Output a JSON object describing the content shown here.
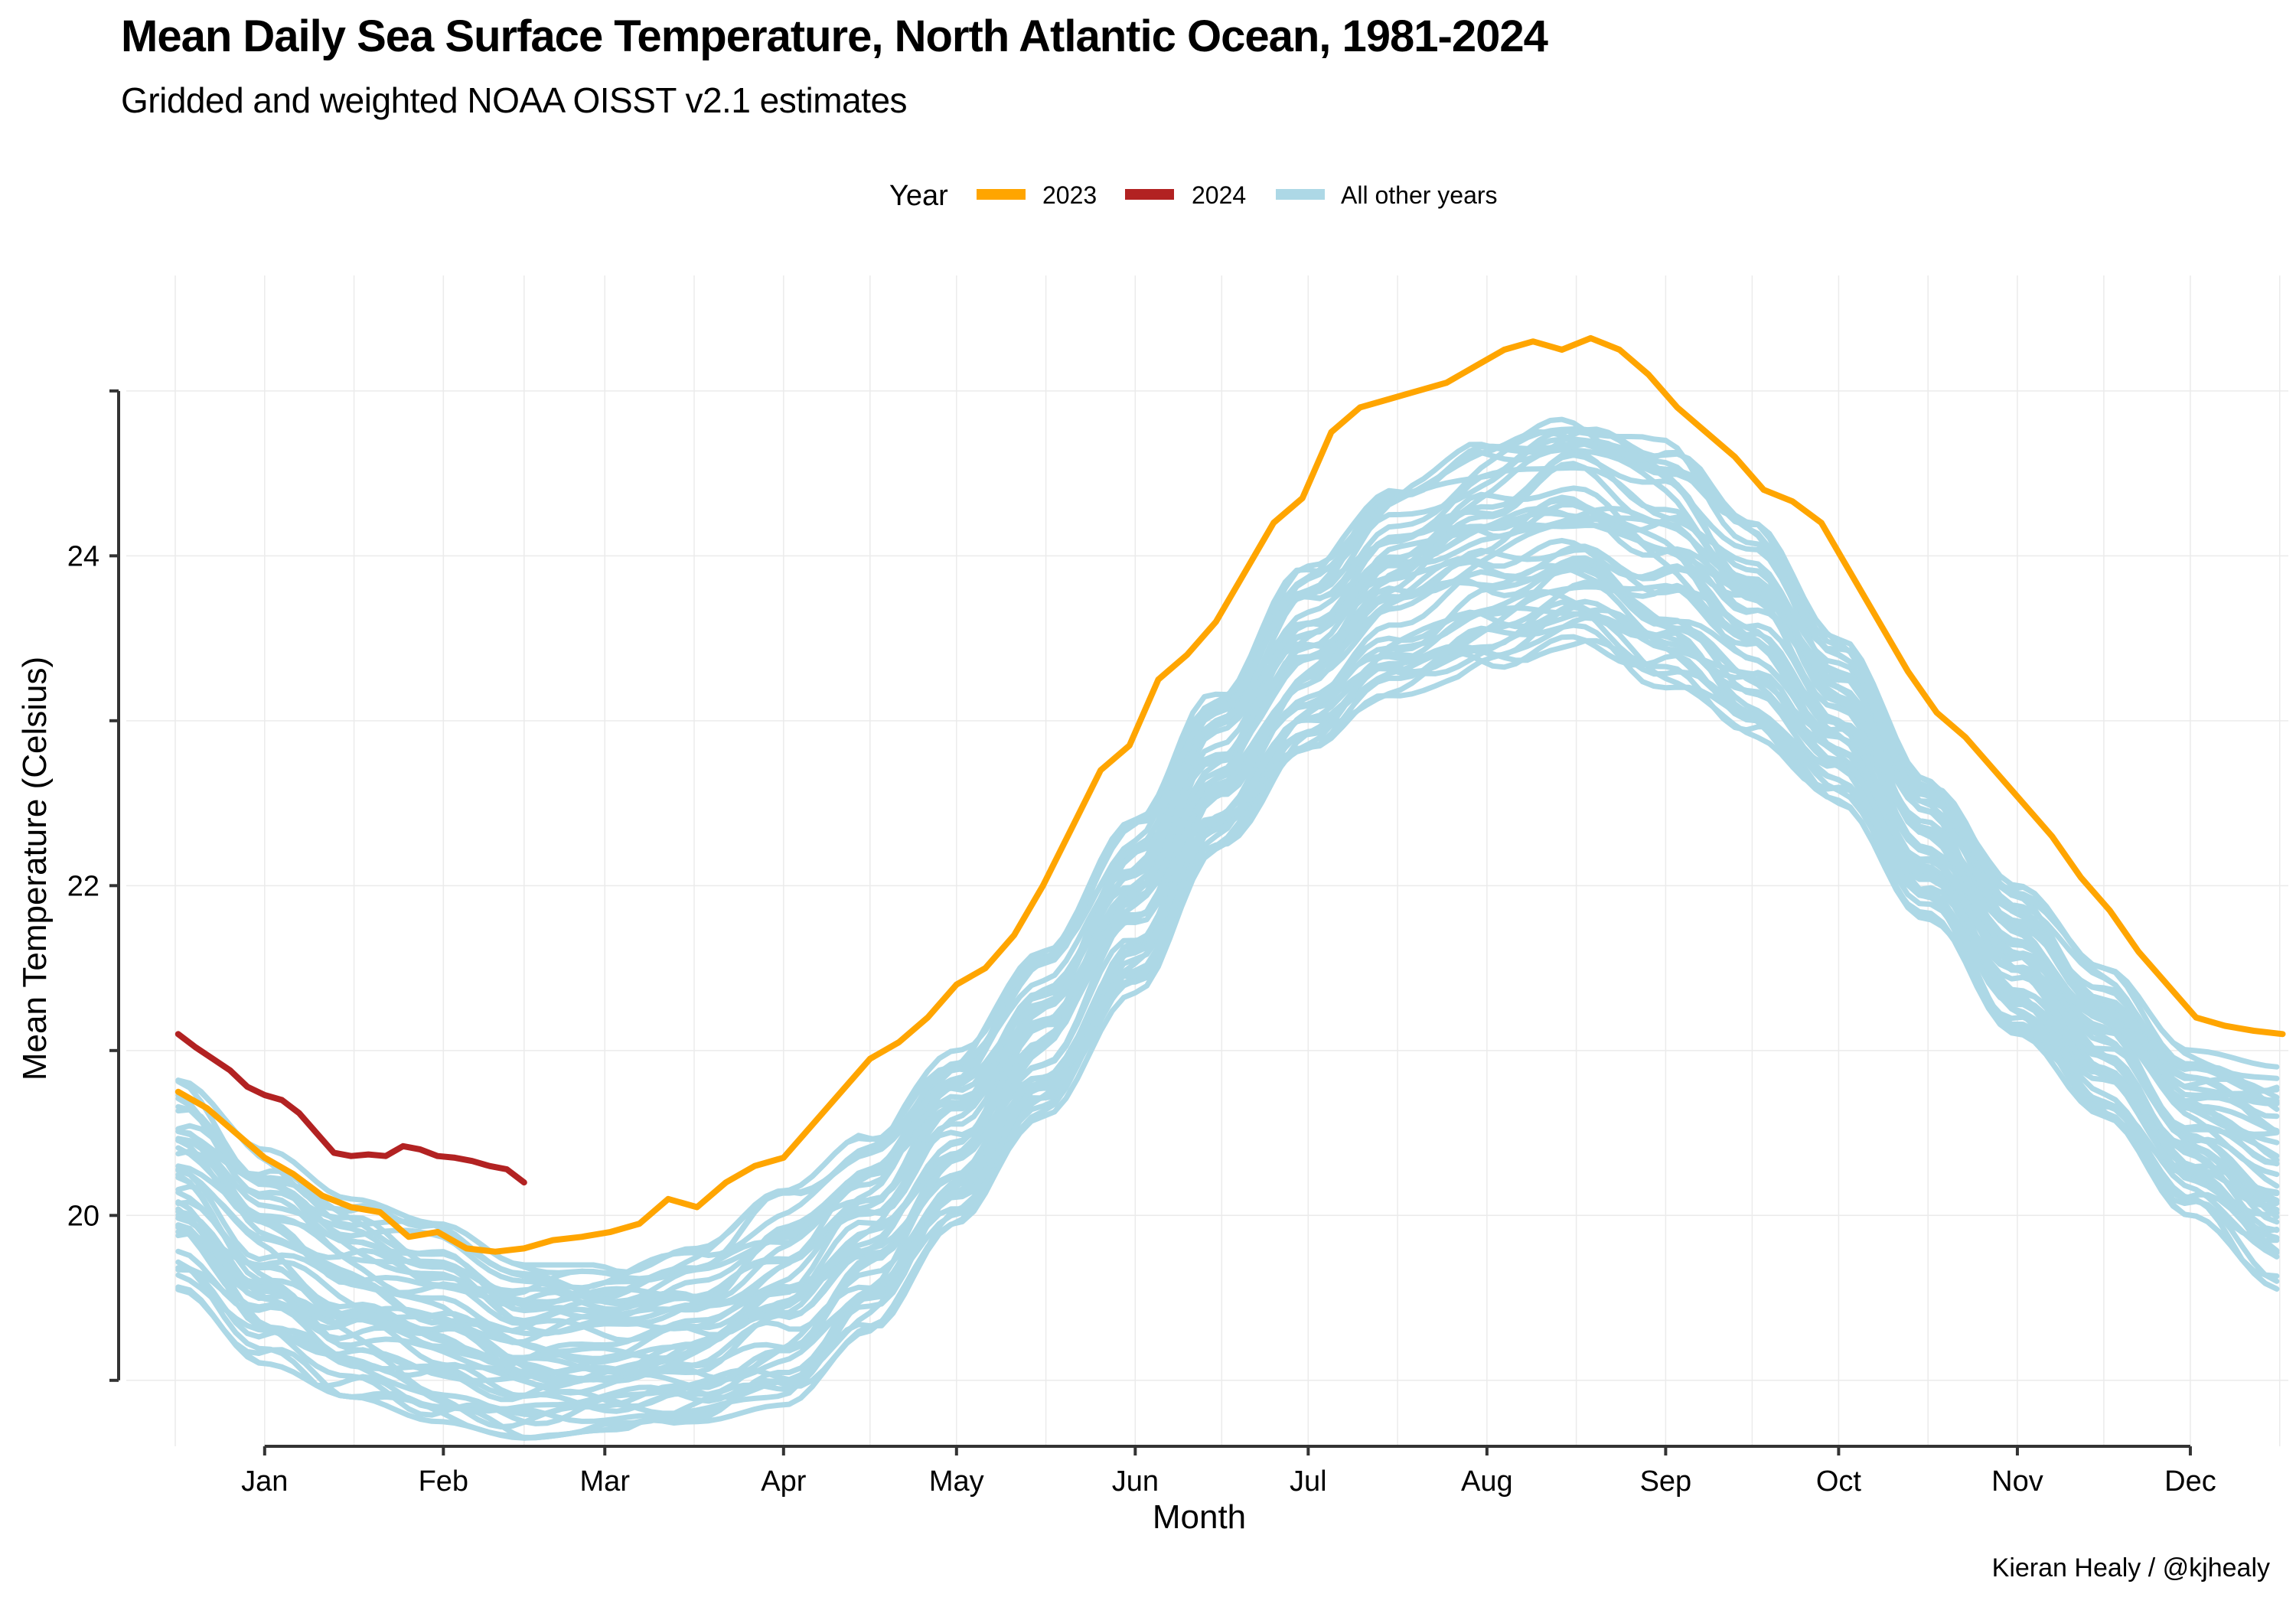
{
  "title": "Mean Daily Sea Surface Temperature, North Atlantic Ocean, 1981-2024",
  "subtitle": "Gridded and weighted NOAA OISST v2.1 estimates",
  "caption": "Kieran Healy / @kjhealy",
  "colors": {
    "y2023": "#FFA500",
    "y2024": "#B22222",
    "other": "#ADD8E6",
    "grid": "#EBEBEB",
    "axis": "#333333"
  },
  "chart_data": {
    "type": "line",
    "title": "Mean Daily Sea Surface Temperature, North Atlantic Ocean, 1981-2024",
    "subtitle": "Gridded and weighted NOAA OISST v2.1 estimates",
    "xlabel": "Month",
    "ylabel": "Mean Temperature (Celsius)",
    "x_unit": "day of year",
    "xlim": [
      -9,
      366
    ],
    "ylim": [
      18.6,
      25.7
    ],
    "x_ticks": [
      {
        "label": "Jan",
        "x": 15
      },
      {
        "label": "Feb",
        "x": 46
      },
      {
        "label": "Mar",
        "x": 74
      },
      {
        "label": "Apr",
        "x": 105
      },
      {
        "label": "May",
        "x": 135
      },
      {
        "label": "Jun",
        "x": 166
      },
      {
        "label": "Jul",
        "x": 196
      },
      {
        "label": "Aug",
        "x": 227
      },
      {
        "label": "Sep",
        "x": 258
      },
      {
        "label": "Oct",
        "x": 288
      },
      {
        "label": "Nov",
        "x": 319
      },
      {
        "label": "Dec",
        "x": 349
      }
    ],
    "y_ticks": [
      20,
      22,
      24
    ],
    "grid": true,
    "legend": {
      "title": "Year",
      "position": "top",
      "entries": [
        "2023",
        "2024",
        "All other years"
      ]
    },
    "series": [
      {
        "name": "2023",
        "color": "#FFA500",
        "x": [
          0,
          5,
          10,
          15,
          20,
          25,
          30,
          35,
          40,
          45,
          50,
          55,
          60,
          65,
          70,
          75,
          80,
          85,
          90,
          95,
          100,
          105,
          110,
          115,
          120,
          125,
          130,
          135,
          140,
          145,
          150,
          155,
          160,
          165,
          170,
          175,
          180,
          185,
          190,
          195,
          200,
          205,
          210,
          215,
          220,
          225,
          230,
          235,
          240,
          245,
          250,
          255,
          260,
          265,
          270,
          275,
          280,
          285,
          290,
          295,
          300,
          305,
          310,
          315,
          320,
          325,
          330,
          335,
          340,
          345,
          350,
          355,
          360,
          365
        ],
        "y": [
          20.75,
          20.65,
          20.5,
          20.35,
          20.25,
          20.12,
          20.05,
          20.02,
          19.87,
          19.9,
          19.8,
          19.78,
          19.8,
          19.85,
          19.87,
          19.9,
          19.95,
          20.1,
          20.05,
          20.2,
          20.3,
          20.35,
          20.55,
          20.75,
          20.95,
          21.05,
          21.2,
          21.4,
          21.5,
          21.7,
          22.0,
          22.35,
          22.7,
          22.85,
          23.25,
          23.4,
          23.6,
          23.9,
          24.2,
          24.35,
          24.75,
          24.9,
          24.95,
          25.0,
          25.05,
          25.15,
          25.25,
          25.3,
          25.25,
          25.32,
          25.25,
          25.1,
          24.9,
          24.75,
          24.6,
          24.4,
          24.33,
          24.2,
          23.9,
          23.6,
          23.3,
          23.05,
          22.9,
          22.7,
          22.5,
          22.3,
          22.05,
          21.85,
          21.6,
          21.4,
          21.2,
          21.15,
          21.12,
          21.1
        ]
      },
      {
        "name": "2024",
        "color": "#B22222",
        "x": [
          0,
          3,
          6,
          9,
          12,
          15,
          18,
          21,
          24,
          27,
          30,
          33,
          36,
          39,
          42,
          45,
          48,
          51,
          54,
          57,
          60
        ],
        "y": [
          21.1,
          21.02,
          20.95,
          20.88,
          20.78,
          20.73,
          20.7,
          20.62,
          20.5,
          20.38,
          20.36,
          20.37,
          20.36,
          20.42,
          20.4,
          20.36,
          20.35,
          20.33,
          20.3,
          20.28,
          20.2
        ]
      },
      {
        "name": "All other years",
        "color": "#ADD8E6",
        "x_range": [
          0,
          365
        ],
        "band_low": [
          {
            "x": 0,
            "y": 19.55
          },
          {
            "x": 15,
            "y": 19.1
          },
          {
            "x": 30,
            "y": 18.9
          },
          {
            "x": 45,
            "y": 18.75
          },
          {
            "x": 60,
            "y": 18.65
          },
          {
            "x": 75,
            "y": 18.7
          },
          {
            "x": 90,
            "y": 18.75
          },
          {
            "x": 105,
            "y": 18.85
          },
          {
            "x": 120,
            "y": 19.3
          },
          {
            "x": 135,
            "y": 19.95
          },
          {
            "x": 150,
            "y": 20.6
          },
          {
            "x": 166,
            "y": 21.35
          },
          {
            "x": 180,
            "y": 22.2
          },
          {
            "x": 196,
            "y": 22.8
          },
          {
            "x": 211,
            "y": 23.15
          },
          {
            "x": 227,
            "y": 23.3
          },
          {
            "x": 242,
            "y": 23.45
          },
          {
            "x": 258,
            "y": 23.2
          },
          {
            "x": 273,
            "y": 22.9
          },
          {
            "x": 288,
            "y": 22.5
          },
          {
            "x": 303,
            "y": 21.8
          },
          {
            "x": 319,
            "y": 21.1
          },
          {
            "x": 334,
            "y": 20.6
          },
          {
            "x": 349,
            "y": 20.0
          },
          {
            "x": 365,
            "y": 19.55
          }
        ],
        "band_high": [
          {
            "x": 0,
            "y": 20.82
          },
          {
            "x": 15,
            "y": 20.4
          },
          {
            "x": 30,
            "y": 20.1
          },
          {
            "x": 45,
            "y": 19.95
          },
          {
            "x": 60,
            "y": 19.7
          },
          {
            "x": 75,
            "y": 19.7
          },
          {
            "x": 90,
            "y": 19.8
          },
          {
            "x": 105,
            "y": 20.15
          },
          {
            "x": 120,
            "y": 20.5
          },
          {
            "x": 135,
            "y": 21.0
          },
          {
            "x": 150,
            "y": 21.6
          },
          {
            "x": 166,
            "y": 22.4
          },
          {
            "x": 180,
            "y": 23.2
          },
          {
            "x": 196,
            "y": 23.95
          },
          {
            "x": 211,
            "y": 24.4
          },
          {
            "x": 227,
            "y": 24.7
          },
          {
            "x": 242,
            "y": 24.9
          },
          {
            "x": 258,
            "y": 24.7
          },
          {
            "x": 273,
            "y": 24.2
          },
          {
            "x": 288,
            "y": 23.5
          },
          {
            "x": 303,
            "y": 22.7
          },
          {
            "x": 319,
            "y": 22.0
          },
          {
            "x": 334,
            "y": 21.5
          },
          {
            "x": 349,
            "y": 21.0
          },
          {
            "x": 365,
            "y": 20.9
          }
        ],
        "line_count": 42
      }
    ]
  }
}
